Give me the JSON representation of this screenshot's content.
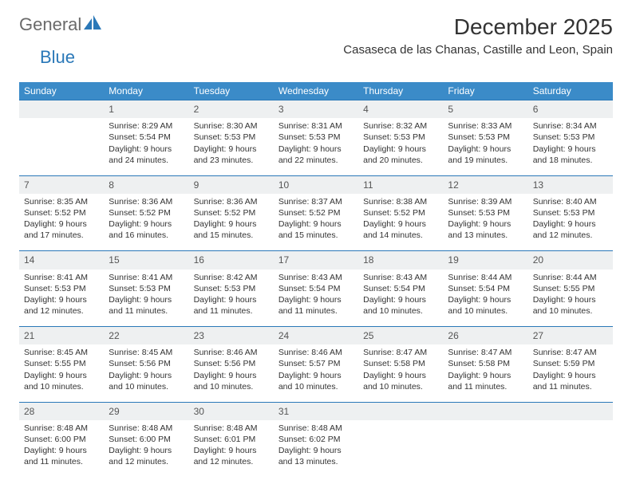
{
  "logo": {
    "part1": "General",
    "part2": "Blue"
  },
  "title": "December 2025",
  "location": "Casaseca de las Chanas, Castille and Leon, Spain",
  "header_bg": "#3b8bc8",
  "rule_color": "#2a78b8",
  "daybar_bg": "#eef0f1",
  "weekdays": [
    "Sunday",
    "Monday",
    "Tuesday",
    "Wednesday",
    "Thursday",
    "Friday",
    "Saturday"
  ],
  "weeks": [
    [
      null,
      {
        "n": "1",
        "sr": "Sunrise: 8:29 AM",
        "ss": "Sunset: 5:54 PM",
        "d1": "Daylight: 9 hours",
        "d2": "and 24 minutes."
      },
      {
        "n": "2",
        "sr": "Sunrise: 8:30 AM",
        "ss": "Sunset: 5:53 PM",
        "d1": "Daylight: 9 hours",
        "d2": "and 23 minutes."
      },
      {
        "n": "3",
        "sr": "Sunrise: 8:31 AM",
        "ss": "Sunset: 5:53 PM",
        "d1": "Daylight: 9 hours",
        "d2": "and 22 minutes."
      },
      {
        "n": "4",
        "sr": "Sunrise: 8:32 AM",
        "ss": "Sunset: 5:53 PM",
        "d1": "Daylight: 9 hours",
        "d2": "and 20 minutes."
      },
      {
        "n": "5",
        "sr": "Sunrise: 8:33 AM",
        "ss": "Sunset: 5:53 PM",
        "d1": "Daylight: 9 hours",
        "d2": "and 19 minutes."
      },
      {
        "n": "6",
        "sr": "Sunrise: 8:34 AM",
        "ss": "Sunset: 5:53 PM",
        "d1": "Daylight: 9 hours",
        "d2": "and 18 minutes."
      }
    ],
    [
      {
        "n": "7",
        "sr": "Sunrise: 8:35 AM",
        "ss": "Sunset: 5:52 PM",
        "d1": "Daylight: 9 hours",
        "d2": "and 17 minutes."
      },
      {
        "n": "8",
        "sr": "Sunrise: 8:36 AM",
        "ss": "Sunset: 5:52 PM",
        "d1": "Daylight: 9 hours",
        "d2": "and 16 minutes."
      },
      {
        "n": "9",
        "sr": "Sunrise: 8:36 AM",
        "ss": "Sunset: 5:52 PM",
        "d1": "Daylight: 9 hours",
        "d2": "and 15 minutes."
      },
      {
        "n": "10",
        "sr": "Sunrise: 8:37 AM",
        "ss": "Sunset: 5:52 PM",
        "d1": "Daylight: 9 hours",
        "d2": "and 15 minutes."
      },
      {
        "n": "11",
        "sr": "Sunrise: 8:38 AM",
        "ss": "Sunset: 5:52 PM",
        "d1": "Daylight: 9 hours",
        "d2": "and 14 minutes."
      },
      {
        "n": "12",
        "sr": "Sunrise: 8:39 AM",
        "ss": "Sunset: 5:53 PM",
        "d1": "Daylight: 9 hours",
        "d2": "and 13 minutes."
      },
      {
        "n": "13",
        "sr": "Sunrise: 8:40 AM",
        "ss": "Sunset: 5:53 PM",
        "d1": "Daylight: 9 hours",
        "d2": "and 12 minutes."
      }
    ],
    [
      {
        "n": "14",
        "sr": "Sunrise: 8:41 AM",
        "ss": "Sunset: 5:53 PM",
        "d1": "Daylight: 9 hours",
        "d2": "and 12 minutes."
      },
      {
        "n": "15",
        "sr": "Sunrise: 8:41 AM",
        "ss": "Sunset: 5:53 PM",
        "d1": "Daylight: 9 hours",
        "d2": "and 11 minutes."
      },
      {
        "n": "16",
        "sr": "Sunrise: 8:42 AM",
        "ss": "Sunset: 5:53 PM",
        "d1": "Daylight: 9 hours",
        "d2": "and 11 minutes."
      },
      {
        "n": "17",
        "sr": "Sunrise: 8:43 AM",
        "ss": "Sunset: 5:54 PM",
        "d1": "Daylight: 9 hours",
        "d2": "and 11 minutes."
      },
      {
        "n": "18",
        "sr": "Sunrise: 8:43 AM",
        "ss": "Sunset: 5:54 PM",
        "d1": "Daylight: 9 hours",
        "d2": "and 10 minutes."
      },
      {
        "n": "19",
        "sr": "Sunrise: 8:44 AM",
        "ss": "Sunset: 5:54 PM",
        "d1": "Daylight: 9 hours",
        "d2": "and 10 minutes."
      },
      {
        "n": "20",
        "sr": "Sunrise: 8:44 AM",
        "ss": "Sunset: 5:55 PM",
        "d1": "Daylight: 9 hours",
        "d2": "and 10 minutes."
      }
    ],
    [
      {
        "n": "21",
        "sr": "Sunrise: 8:45 AM",
        "ss": "Sunset: 5:55 PM",
        "d1": "Daylight: 9 hours",
        "d2": "and 10 minutes."
      },
      {
        "n": "22",
        "sr": "Sunrise: 8:45 AM",
        "ss": "Sunset: 5:56 PM",
        "d1": "Daylight: 9 hours",
        "d2": "and 10 minutes."
      },
      {
        "n": "23",
        "sr": "Sunrise: 8:46 AM",
        "ss": "Sunset: 5:56 PM",
        "d1": "Daylight: 9 hours",
        "d2": "and 10 minutes."
      },
      {
        "n": "24",
        "sr": "Sunrise: 8:46 AM",
        "ss": "Sunset: 5:57 PM",
        "d1": "Daylight: 9 hours",
        "d2": "and 10 minutes."
      },
      {
        "n": "25",
        "sr": "Sunrise: 8:47 AM",
        "ss": "Sunset: 5:58 PM",
        "d1": "Daylight: 9 hours",
        "d2": "and 10 minutes."
      },
      {
        "n": "26",
        "sr": "Sunrise: 8:47 AM",
        "ss": "Sunset: 5:58 PM",
        "d1": "Daylight: 9 hours",
        "d2": "and 11 minutes."
      },
      {
        "n": "27",
        "sr": "Sunrise: 8:47 AM",
        "ss": "Sunset: 5:59 PM",
        "d1": "Daylight: 9 hours",
        "d2": "and 11 minutes."
      }
    ],
    [
      {
        "n": "28",
        "sr": "Sunrise: 8:48 AM",
        "ss": "Sunset: 6:00 PM",
        "d1": "Daylight: 9 hours",
        "d2": "and 11 minutes."
      },
      {
        "n": "29",
        "sr": "Sunrise: 8:48 AM",
        "ss": "Sunset: 6:00 PM",
        "d1": "Daylight: 9 hours",
        "d2": "and 12 minutes."
      },
      {
        "n": "30",
        "sr": "Sunrise: 8:48 AM",
        "ss": "Sunset: 6:01 PM",
        "d1": "Daylight: 9 hours",
        "d2": "and 12 minutes."
      },
      {
        "n": "31",
        "sr": "Sunrise: 8:48 AM",
        "ss": "Sunset: 6:02 PM",
        "d1": "Daylight: 9 hours",
        "d2": "and 13 minutes."
      },
      null,
      null,
      null
    ]
  ]
}
